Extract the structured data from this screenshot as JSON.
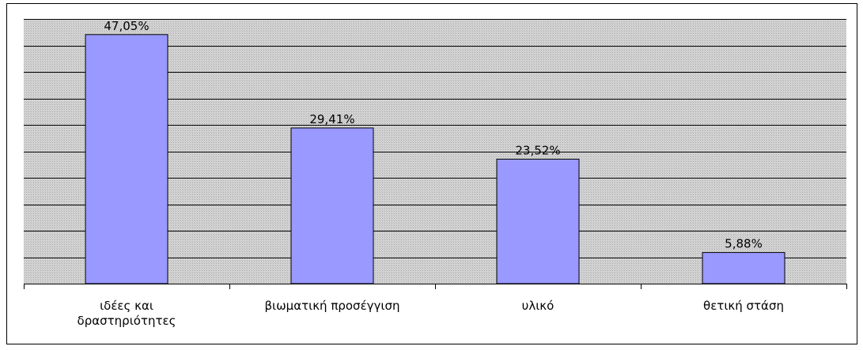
{
  "chart_data": {
    "type": "bar",
    "categories": [
      "ιδέες και\nδραστηριότητες",
      "βιωματική προσέγγιση",
      "υλικό",
      "θετική στάση"
    ],
    "values": [
      47.05,
      29.41,
      23.52,
      5.88
    ],
    "value_labels": [
      "47,05%",
      "29,41%",
      "23,52%",
      "5,88%"
    ],
    "color": "#9999ff",
    "ylim": [
      0,
      50
    ],
    "yticks": [
      0,
      5,
      10,
      15,
      20,
      25,
      30,
      35,
      40,
      45,
      50
    ],
    "grid": true
  }
}
